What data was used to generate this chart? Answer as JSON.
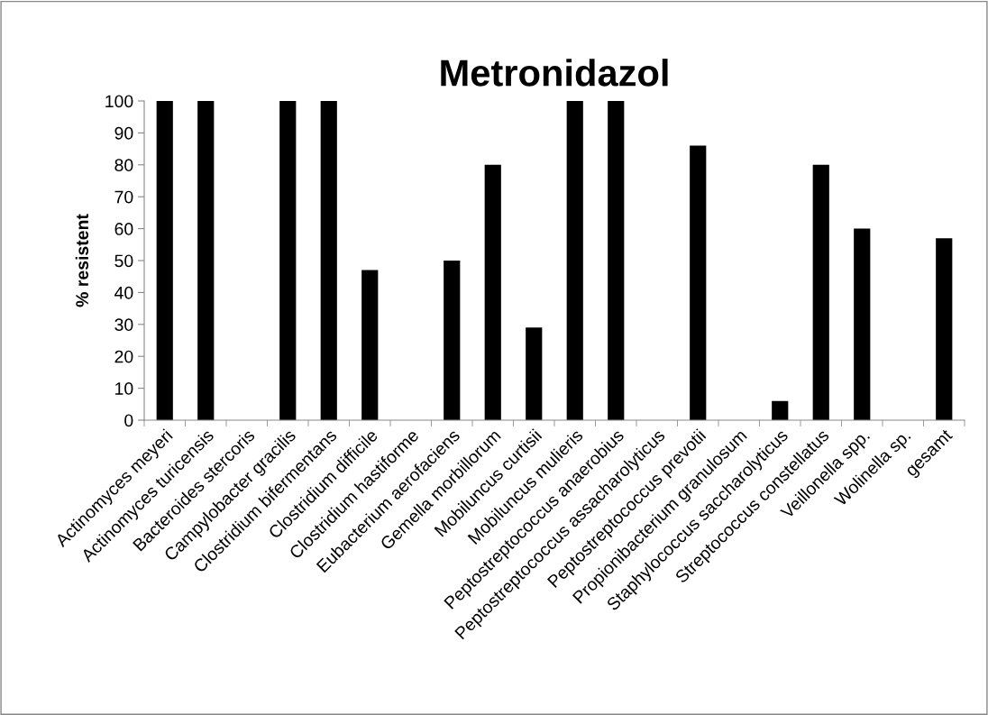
{
  "chart_data": {
    "type": "bar",
    "title": "Metronidazol",
    "ylabel": "% resistent",
    "categories": [
      "Actinomyces meyeri",
      "Actinomyces turicensis",
      "Bacteroides stercoris",
      "Campylobacter gracilis",
      "Clostridium bifermentans",
      "Clostridium difficile",
      "Clostridium hastiforme",
      "Eubacterium aerofaciens",
      "Gemella morbillorum",
      "Mobiluncus curtisii",
      "Mobiluncus mulieris",
      "Peptostreptococcus anaerobius",
      "Peptostreptococcus assacharolyticus",
      "Peptostreptococcus prevotii",
      "Propionibacterium granulosum",
      "Staphylococcus saccharolyticus",
      "Streptococcus constellatus",
      "Veillonella spp.",
      "Wolinella sp.",
      "gesamt"
    ],
    "values": [
      100,
      100,
      0,
      100,
      100,
      47,
      0,
      50,
      80,
      29,
      100,
      100,
      0,
      86,
      0,
      6,
      80,
      60,
      0,
      57
    ],
    "color": "#000000",
    "ylim": [
      0,
      100
    ],
    "yticks": [
      0,
      10,
      20,
      30,
      40,
      50,
      60,
      70,
      80,
      90,
      100
    ],
    "grid": false,
    "legend": false
  }
}
